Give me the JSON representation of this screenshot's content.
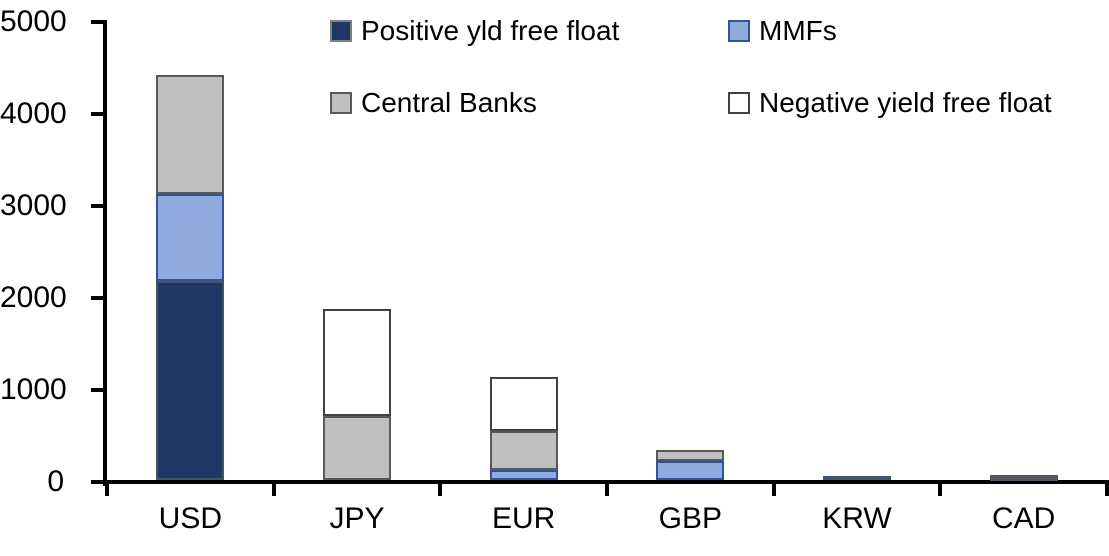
{
  "chart_data": {
    "type": "bar",
    "stacked": true,
    "title": "",
    "xlabel": "",
    "ylabel": "",
    "categories": [
      "USD",
      "JPY",
      "EUR",
      "GBP",
      "KRW",
      "CAD"
    ],
    "series": [
      {
        "name": "Positive yld free float",
        "color": "#1F3864",
        "border": "#44546A",
        "values": [
          2160,
          0,
          0,
          0,
          45,
          30
        ]
      },
      {
        "name": "MMFs",
        "color": "#8FAADC",
        "border": "#2F5597",
        "values": [
          950,
          0,
          110,
          210,
          0,
          0
        ]
      },
      {
        "name": "Central Banks",
        "color": "#BFBFBF",
        "border": "#595959",
        "values": [
          1290,
          700,
          420,
          120,
          0,
          25
        ]
      },
      {
        "name": "Negative yield free float",
        "color": "#FFFFFF",
        "border": "#404040",
        "values": [
          0,
          1160,
          590,
          0,
          0,
          0
        ]
      }
    ],
    "totals": [
      4400,
      1860,
      1120,
      330,
      45,
      55
    ],
    "ylim": [
      0,
      5000
    ],
    "yticks": [
      0,
      1000,
      2000,
      3000,
      4000,
      5000
    ],
    "grid": false,
    "legend_position": "top",
    "legend_columns": 2,
    "axis_color": "#000000",
    "text_color": "#000000",
    "background_color": "#FFFFFF"
  }
}
